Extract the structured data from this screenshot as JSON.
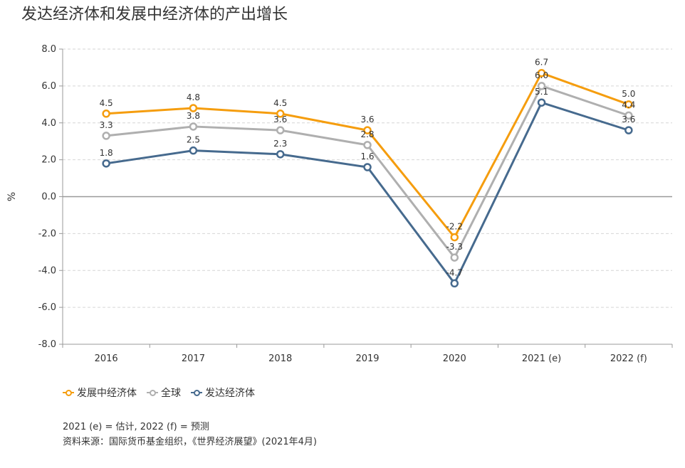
{
  "title": "发达经济体和发展中经济体的产出增长",
  "chart_data": {
    "type": "line",
    "categories": [
      "2016",
      "2017",
      "2018",
      "2019",
      "2020",
      "2021 (e)",
      "2022 (f)"
    ],
    "ylabel": "%",
    "ylim": [
      -8,
      8
    ],
    "yticks": [
      "8.0",
      "6.0",
      "4.0",
      "2.0",
      "0.0",
      "-2.0",
      "-4.0",
      "-6.0",
      "-8.0"
    ],
    "grid": true,
    "legend_position": "bottom-left",
    "series": [
      {
        "name": "发展中经济体",
        "color": "#F59D0E",
        "values": [
          4.5,
          4.8,
          4.5,
          3.6,
          -2.2,
          6.7,
          5.0
        ],
        "labels": [
          "4.5",
          "4.8",
          "4.5",
          "3.6",
          "-2.2",
          "6.7",
          "5.0"
        ]
      },
      {
        "name": "全球",
        "color": "#AFAFAF",
        "values": [
          3.3,
          3.8,
          3.6,
          2.8,
          -3.3,
          6.0,
          4.4
        ],
        "labels": [
          "3.3",
          "3.8",
          "3.6",
          "2.8",
          "-3.3",
          "6.0",
          "4.4"
        ]
      },
      {
        "name": "发达经济体",
        "color": "#466A8E",
        "values": [
          1.8,
          2.5,
          2.3,
          1.6,
          -4.7,
          5.1,
          3.6
        ],
        "labels": [
          "1.8",
          "2.5",
          "2.3",
          "1.6",
          "-4.7",
          "5.1",
          "3.6"
        ]
      }
    ]
  },
  "notes": {
    "line1": "2021 (e) = 估计, 2022 (f) = 预测",
    "line2": "资料来源：国际货币基金组织，《世界经济展望》(2021年4月)"
  }
}
